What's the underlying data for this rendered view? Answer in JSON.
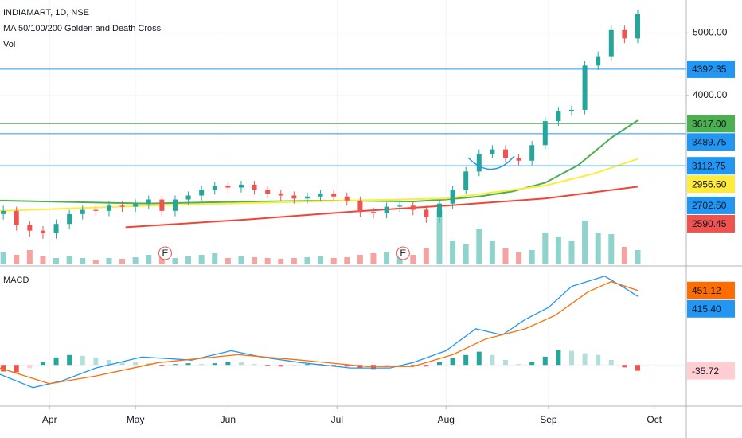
{
  "chart_data": [
    {
      "type": "candlestick",
      "title": "INDIAMART, 1D, NSE",
      "subtitle": "MA 50/100/200 Golden and Death Cross",
      "volume_label": "Vol",
      "log_scale": true,
      "grid": true,
      "up_color": "#26a69a",
      "down_color": "#ef5350",
      "volume_up_color": "#8fd3cc",
      "volume_down_color": "#f5a3a1",
      "xlim": [
        -15,
        192.7
      ],
      "ylim": [
        2190,
        5622
      ],
      "vlim": [
        0,
        100
      ],
      "yticks": [
        {
          "value": 5000,
          "label": "5000.00"
        },
        {
          "value": 4000,
          "label": "4000.00"
        }
      ],
      "x": [
        -14,
        -10,
        -6,
        -2,
        2,
        6,
        10,
        14,
        18,
        22,
        26,
        30,
        34,
        38,
        42,
        46,
        50,
        54,
        58,
        62,
        66,
        70,
        74,
        78,
        82,
        86,
        90,
        94,
        98,
        102,
        106,
        110,
        114,
        118,
        122,
        126,
        130,
        134,
        138,
        142,
        146,
        150,
        154,
        158,
        162,
        166,
        170,
        174,
        178
      ],
      "open": [
        2620,
        2650,
        2520,
        2470,
        2450,
        2530,
        2620,
        2660,
        2650,
        2700,
        2690,
        2720,
        2760,
        2650,
        2760,
        2800,
        2860,
        2900,
        2880,
        2910,
        2860,
        2820,
        2800,
        2770,
        2790,
        2820,
        2790,
        2750,
        2640,
        2630,
        2690,
        2700,
        2660,
        2590,
        2720,
        2860,
        3050,
        3250,
        3300,
        3200,
        3170,
        3350,
        3650,
        3780,
        3800,
        4450,
        4600,
        5050,
        4900
      ],
      "high": [
        2700,
        2690,
        2560,
        2510,
        2570,
        2660,
        2700,
        2700,
        2740,
        2740,
        2760,
        2800,
        2800,
        2800,
        2840,
        2900,
        2940,
        2940,
        2950,
        2950,
        2900,
        2860,
        2840,
        2830,
        2860,
        2860,
        2830,
        2790,
        2680,
        2730,
        2740,
        2740,
        2700,
        2760,
        2900,
        3100,
        3300,
        3350,
        3350,
        3250,
        3400,
        3700,
        3840,
        3860,
        4520,
        4680,
        5130,
        5130,
        5420
      ],
      "low": [
        2570,
        2470,
        2420,
        2400,
        2400,
        2480,
        2570,
        2600,
        2600,
        2640,
        2640,
        2670,
        2600,
        2600,
        2710,
        2750,
        2810,
        2830,
        2830,
        2810,
        2770,
        2750,
        2720,
        2720,
        2740,
        2740,
        2700,
        2590,
        2580,
        2580,
        2640,
        2610,
        2540,
        2540,
        2670,
        2810,
        3000,
        3200,
        3150,
        3120,
        3120,
        3300,
        3590,
        3720,
        3740,
        4380,
        4530,
        4820,
        4820
      ],
      "close": [
        2650,
        2520,
        2470,
        2450,
        2530,
        2620,
        2660,
        2650,
        2700,
        2690,
        2720,
        2760,
        2650,
        2760,
        2800,
        2860,
        2900,
        2880,
        2910,
        2860,
        2820,
        2800,
        2770,
        2790,
        2820,
        2790,
        2750,
        2640,
        2630,
        2690,
        2700,
        2660,
        2590,
        2720,
        2860,
        3050,
        3250,
        3300,
        3200,
        3170,
        3350,
        3650,
        3780,
        3800,
        4450,
        4600,
        5050,
        4900,
        5350
      ],
      "volume": [
        15,
        12,
        18,
        10,
        8,
        10,
        8,
        6,
        8,
        7,
        9,
        12,
        10,
        8,
        10,
        12,
        14,
        8,
        10,
        9,
        8,
        7,
        8,
        9,
        10,
        8,
        9,
        12,
        14,
        16,
        10,
        12,
        20,
        68,
        30,
        25,
        45,
        30,
        20,
        15,
        18,
        40,
        35,
        30,
        55,
        40,
        38,
        22,
        18
      ],
      "ma_lines": [
        {
          "color": "#4caf50",
          "x": [
            -15,
            30,
            60,
            90,
            110,
            120,
            130,
            140,
            150,
            160,
            170,
            178
          ],
          "values": [
            2750,
            2720,
            2740,
            2750,
            2740,
            2760,
            2790,
            2840,
            2930,
            3120,
            3440,
            3660
          ]
        },
        {
          "color": "#ffeb3b",
          "x": [
            -15,
            30,
            90,
            120,
            150,
            165,
            178
          ],
          "values": [
            2650,
            2700,
            2750,
            2770,
            2900,
            3030,
            3190
          ]
        },
        {
          "color": "#f44336",
          "x": [
            23,
            60,
            90,
            120,
            150,
            178
          ],
          "values": [
            2500,
            2570,
            2640,
            2700,
            2770,
            2890
          ]
        }
      ],
      "price_labels": [
        {
          "value": 4392.35,
          "label": "4392.35",
          "color": "#2196f3",
          "text_color": "#ffffff",
          "line": true
        },
        {
          "value": 3617.0,
          "label": "3617.00",
          "color": "#4caf50",
          "text_color": "#ffffff",
          "line": true
        },
        {
          "value": 3489.75,
          "label": "3489.75",
          "color": "#2196f3",
          "text_color": "#ffffff",
          "line": true
        },
        {
          "value": 3112.75,
          "label": "3112.75",
          "color": "#2196f3",
          "text_color": "#ffffff",
          "line": true
        },
        {
          "value": 2956.6,
          "label": "2956.60",
          "color": "#ffeb3b",
          "text_color": "#131722",
          "line": false
        },
        {
          "value": 2702.5,
          "label": "2702.50",
          "color": "#2196f3",
          "text_color": "#ffffff",
          "line": false
        },
        {
          "value": 2590.45,
          "label": "2590.45",
          "color": "#ef5350",
          "text_color": "#ffffff",
          "line": false
        }
      ],
      "annotations": [
        {
          "x": 35,
          "label": "E"
        },
        {
          "x": 107,
          "label": "E"
        }
      ]
    },
    {
      "type": "macd",
      "title": "MACD",
      "grid": true,
      "xlim": [
        -15,
        192.7
      ],
      "ylim": [
        -250,
        590
      ],
      "xticks": [
        {
          "value": 0,
          "label": "Apr"
        },
        {
          "value": 26,
          "label": "May"
        },
        {
          "value": 54,
          "label": "Jun"
        },
        {
          "value": 87,
          "label": "Jul"
        },
        {
          "value": 120,
          "label": "Aug"
        },
        {
          "value": 151,
          "label": "Sep"
        },
        {
          "value": 183,
          "label": "Oct"
        }
      ],
      "x": [
        -14,
        -10,
        -6,
        -2,
        2,
        6,
        10,
        14,
        18,
        22,
        26,
        30,
        34,
        38,
        42,
        46,
        50,
        54,
        58,
        62,
        66,
        70,
        74,
        78,
        82,
        86,
        90,
        94,
        98,
        102,
        106,
        110,
        114,
        118,
        122,
        126,
        130,
        134,
        138,
        142,
        146,
        150,
        154,
        158,
        162,
        166,
        170,
        174,
        178
      ],
      "histogram": [
        -40,
        -45,
        -20,
        20,
        45,
        60,
        55,
        45,
        30,
        20,
        15,
        10,
        -5,
        5,
        10,
        5,
        10,
        20,
        15,
        5,
        -5,
        -10,
        -5,
        5,
        5,
        -5,
        -10,
        -20,
        -25,
        -15,
        -5,
        -5,
        -10,
        20,
        40,
        60,
        80,
        60,
        30,
        5,
        20,
        50,
        90,
        85,
        70,
        60,
        30,
        -15,
        -35.72
      ],
      "hist_colors": [
        "#26a69a",
        "#b2dfdb",
        "#ef5350",
        "#ffcdd2"
      ],
      "series": [
        {
          "color": "#2196f3",
          "x": [
            -15,
            -5,
            4,
            14,
            28,
            43,
            55,
            64,
            76,
            91,
            103,
            110,
            120,
            129,
            137,
            144,
            151,
            158,
            168,
            174,
            178
          ],
          "values": [
            -57,
            -138,
            -95,
            -19,
            48,
            29,
            86,
            48,
            14,
            -19,
            -19,
            14,
            86,
            219,
            181,
            276,
            348,
            476,
            538,
            467,
            415.4
          ]
        },
        {
          "color": "#ff6d00",
          "x": [
            -15,
            0,
            14,
            33,
            57,
            76,
            96,
            110,
            122,
            132,
            144,
            153,
            163,
            170,
            178
          ],
          "values": [
            -19,
            -114,
            -67,
            14,
            62,
            29,
            -10,
            -10,
            62,
            157,
            219,
            300,
            443,
            505,
            451.12
          ]
        }
      ],
      "axis_labels": [
        {
          "value": 451.12,
          "label": "451.12",
          "color": "#ff6d00",
          "text_color": "#ffffff"
        },
        {
          "value": 415.4,
          "label": "415.40",
          "color": "#2196f3",
          "text_color": "#ffffff"
        },
        {
          "value": -35.72,
          "label": "-35.72",
          "color": "#ffcdd2",
          "text_color": "#e53935"
        }
      ]
    }
  ]
}
